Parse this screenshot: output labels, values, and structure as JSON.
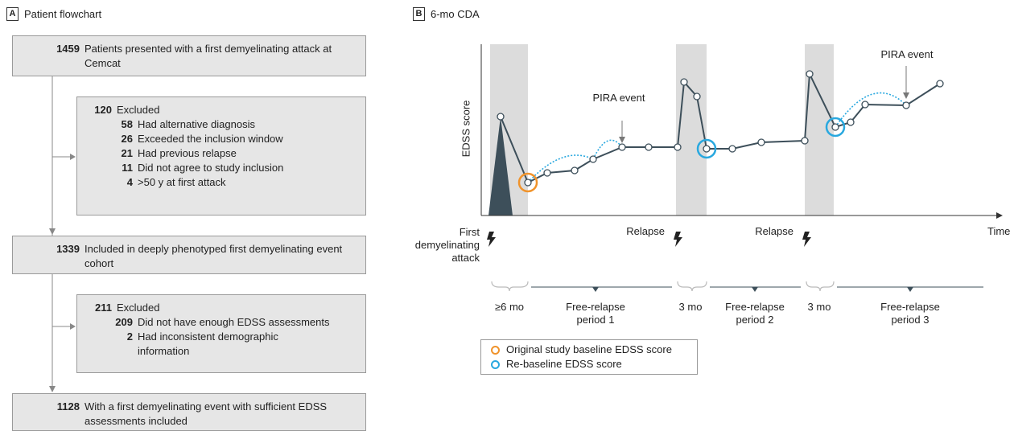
{
  "panel_a": {
    "letter": "A",
    "title": "Patient flowchart",
    "boxes": [
      {
        "count": 1459,
        "text": "Patients presented with a first demyelinating attack at Cemcat"
      },
      {
        "count": 120,
        "text": "Excluded",
        "items": [
          {
            "count": 58,
            "text": "Had alternative diagnosis"
          },
          {
            "count": 26,
            "text": "Exceeded the inclusion window"
          },
          {
            "count": 21,
            "text": "Had previous relapse"
          },
          {
            "count": 11,
            "text": "Did not agree to study inclusion"
          },
          {
            "count": 4,
            "text": ">50 y at first attack"
          }
        ]
      },
      {
        "count": 1339,
        "text": "Included in deeply phenotyped first demyelinating event cohort"
      },
      {
        "count": 211,
        "text": "Excluded",
        "items": [
          {
            "count": 209,
            "text": "Did not have enough EDSS assessments"
          },
          {
            "count": 2,
            "text": "Had inconsistent demographic information"
          }
        ]
      },
      {
        "count": 1128,
        "text": "With a first demyelinating event with sufficient EDSS assessments included"
      }
    ]
  },
  "panel_b": {
    "letter": "B",
    "title": "6-mo CDA",
    "y_axis_label": "EDSS score",
    "x_axis_label": "Time",
    "annotations": [
      "PIRA event",
      "PIRA event"
    ],
    "events": [
      "First demyelinating attack",
      "Relapse",
      "Relapse"
    ],
    "periods": [
      "≥6 mo",
      "Free-relapse period 1",
      "3 mo",
      "Free-relapse period 2",
      "3 mo",
      "Free-relapse period 3"
    ],
    "legend": [
      {
        "text": "Original study baseline EDSS score",
        "color": "#f0932b"
      },
      {
        "text": "Re-baseline EDSS score",
        "color": "#29a8df"
      }
    ]
  }
}
